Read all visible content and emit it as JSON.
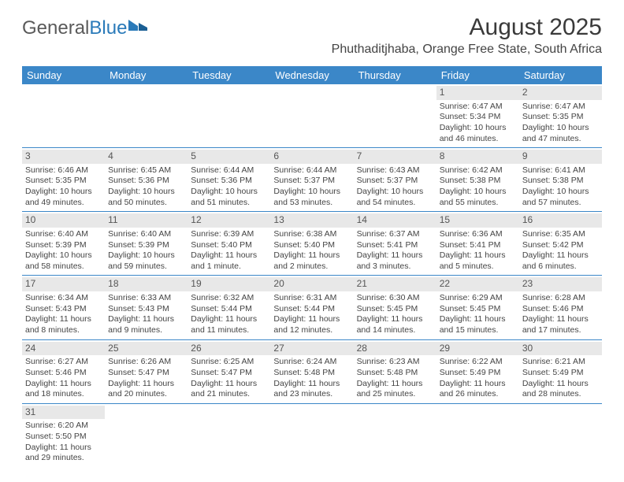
{
  "logo": {
    "part1": "General",
    "part2": "Blue"
  },
  "title": "August 2025",
  "location": "Phuthaditjhaba, Orange Free State, South Africa",
  "colors": {
    "header_bg": "#3b87c8",
    "header_text": "#ffffff",
    "daynum_bg": "#e8e8e8",
    "text": "#444444",
    "logo_gray": "#5a5a5a",
    "logo_blue": "#2a7ab9",
    "border": "#3b87c8"
  },
  "fonts": {
    "title_size": 30,
    "location_size": 16,
    "header_size": 13,
    "cell_size": 10.5,
    "daynum_size": 12
  },
  "day_headers": [
    "Sunday",
    "Monday",
    "Tuesday",
    "Wednesday",
    "Thursday",
    "Friday",
    "Saturday"
  ],
  "weeks": [
    [
      {
        "n": "",
        "sr": "",
        "ss": "",
        "dl": ""
      },
      {
        "n": "",
        "sr": "",
        "ss": "",
        "dl": ""
      },
      {
        "n": "",
        "sr": "",
        "ss": "",
        "dl": ""
      },
      {
        "n": "",
        "sr": "",
        "ss": "",
        "dl": ""
      },
      {
        "n": "",
        "sr": "",
        "ss": "",
        "dl": ""
      },
      {
        "n": "1",
        "sr": "Sunrise: 6:47 AM",
        "ss": "Sunset: 5:34 PM",
        "dl": "Daylight: 10 hours and 46 minutes."
      },
      {
        "n": "2",
        "sr": "Sunrise: 6:47 AM",
        "ss": "Sunset: 5:35 PM",
        "dl": "Daylight: 10 hours and 47 minutes."
      }
    ],
    [
      {
        "n": "3",
        "sr": "Sunrise: 6:46 AM",
        "ss": "Sunset: 5:35 PM",
        "dl": "Daylight: 10 hours and 49 minutes."
      },
      {
        "n": "4",
        "sr": "Sunrise: 6:45 AM",
        "ss": "Sunset: 5:36 PM",
        "dl": "Daylight: 10 hours and 50 minutes."
      },
      {
        "n": "5",
        "sr": "Sunrise: 6:44 AM",
        "ss": "Sunset: 5:36 PM",
        "dl": "Daylight: 10 hours and 51 minutes."
      },
      {
        "n": "6",
        "sr": "Sunrise: 6:44 AM",
        "ss": "Sunset: 5:37 PM",
        "dl": "Daylight: 10 hours and 53 minutes."
      },
      {
        "n": "7",
        "sr": "Sunrise: 6:43 AM",
        "ss": "Sunset: 5:37 PM",
        "dl": "Daylight: 10 hours and 54 minutes."
      },
      {
        "n": "8",
        "sr": "Sunrise: 6:42 AM",
        "ss": "Sunset: 5:38 PM",
        "dl": "Daylight: 10 hours and 55 minutes."
      },
      {
        "n": "9",
        "sr": "Sunrise: 6:41 AM",
        "ss": "Sunset: 5:38 PM",
        "dl": "Daylight: 10 hours and 57 minutes."
      }
    ],
    [
      {
        "n": "10",
        "sr": "Sunrise: 6:40 AM",
        "ss": "Sunset: 5:39 PM",
        "dl": "Daylight: 10 hours and 58 minutes."
      },
      {
        "n": "11",
        "sr": "Sunrise: 6:40 AM",
        "ss": "Sunset: 5:39 PM",
        "dl": "Daylight: 10 hours and 59 minutes."
      },
      {
        "n": "12",
        "sr": "Sunrise: 6:39 AM",
        "ss": "Sunset: 5:40 PM",
        "dl": "Daylight: 11 hours and 1 minute."
      },
      {
        "n": "13",
        "sr": "Sunrise: 6:38 AM",
        "ss": "Sunset: 5:40 PM",
        "dl": "Daylight: 11 hours and 2 minutes."
      },
      {
        "n": "14",
        "sr": "Sunrise: 6:37 AM",
        "ss": "Sunset: 5:41 PM",
        "dl": "Daylight: 11 hours and 3 minutes."
      },
      {
        "n": "15",
        "sr": "Sunrise: 6:36 AM",
        "ss": "Sunset: 5:41 PM",
        "dl": "Daylight: 11 hours and 5 minutes."
      },
      {
        "n": "16",
        "sr": "Sunrise: 6:35 AM",
        "ss": "Sunset: 5:42 PM",
        "dl": "Daylight: 11 hours and 6 minutes."
      }
    ],
    [
      {
        "n": "17",
        "sr": "Sunrise: 6:34 AM",
        "ss": "Sunset: 5:43 PM",
        "dl": "Daylight: 11 hours and 8 minutes."
      },
      {
        "n": "18",
        "sr": "Sunrise: 6:33 AM",
        "ss": "Sunset: 5:43 PM",
        "dl": "Daylight: 11 hours and 9 minutes."
      },
      {
        "n": "19",
        "sr": "Sunrise: 6:32 AM",
        "ss": "Sunset: 5:44 PM",
        "dl": "Daylight: 11 hours and 11 minutes."
      },
      {
        "n": "20",
        "sr": "Sunrise: 6:31 AM",
        "ss": "Sunset: 5:44 PM",
        "dl": "Daylight: 11 hours and 12 minutes."
      },
      {
        "n": "21",
        "sr": "Sunrise: 6:30 AM",
        "ss": "Sunset: 5:45 PM",
        "dl": "Daylight: 11 hours and 14 minutes."
      },
      {
        "n": "22",
        "sr": "Sunrise: 6:29 AM",
        "ss": "Sunset: 5:45 PM",
        "dl": "Daylight: 11 hours and 15 minutes."
      },
      {
        "n": "23",
        "sr": "Sunrise: 6:28 AM",
        "ss": "Sunset: 5:46 PM",
        "dl": "Daylight: 11 hours and 17 minutes."
      }
    ],
    [
      {
        "n": "24",
        "sr": "Sunrise: 6:27 AM",
        "ss": "Sunset: 5:46 PM",
        "dl": "Daylight: 11 hours and 18 minutes."
      },
      {
        "n": "25",
        "sr": "Sunrise: 6:26 AM",
        "ss": "Sunset: 5:47 PM",
        "dl": "Daylight: 11 hours and 20 minutes."
      },
      {
        "n": "26",
        "sr": "Sunrise: 6:25 AM",
        "ss": "Sunset: 5:47 PM",
        "dl": "Daylight: 11 hours and 21 minutes."
      },
      {
        "n": "27",
        "sr": "Sunrise: 6:24 AM",
        "ss": "Sunset: 5:48 PM",
        "dl": "Daylight: 11 hours and 23 minutes."
      },
      {
        "n": "28",
        "sr": "Sunrise: 6:23 AM",
        "ss": "Sunset: 5:48 PM",
        "dl": "Daylight: 11 hours and 25 minutes."
      },
      {
        "n": "29",
        "sr": "Sunrise: 6:22 AM",
        "ss": "Sunset: 5:49 PM",
        "dl": "Daylight: 11 hours and 26 minutes."
      },
      {
        "n": "30",
        "sr": "Sunrise: 6:21 AM",
        "ss": "Sunset: 5:49 PM",
        "dl": "Daylight: 11 hours and 28 minutes."
      }
    ],
    [
      {
        "n": "31",
        "sr": "Sunrise: 6:20 AM",
        "ss": "Sunset: 5:50 PM",
        "dl": "Daylight: 11 hours and 29 minutes."
      },
      {
        "n": "",
        "sr": "",
        "ss": "",
        "dl": ""
      },
      {
        "n": "",
        "sr": "",
        "ss": "",
        "dl": ""
      },
      {
        "n": "",
        "sr": "",
        "ss": "",
        "dl": ""
      },
      {
        "n": "",
        "sr": "",
        "ss": "",
        "dl": ""
      },
      {
        "n": "",
        "sr": "",
        "ss": "",
        "dl": ""
      },
      {
        "n": "",
        "sr": "",
        "ss": "",
        "dl": ""
      }
    ]
  ]
}
